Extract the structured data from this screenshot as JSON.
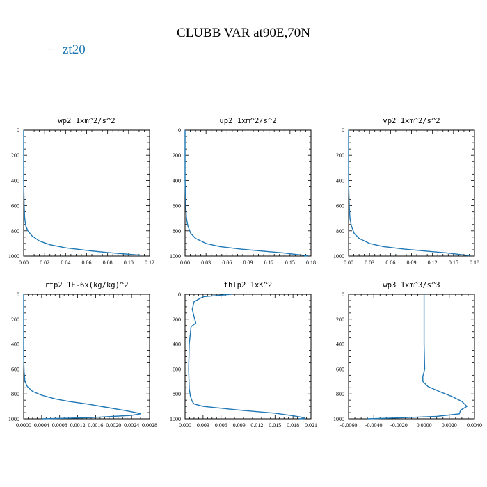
{
  "figure": {
    "title": "CLUBB VAR at90E,70N",
    "legend": {
      "label": "zt20",
      "color": "#1f77b4",
      "marker": "−",
      "placement": "top-left"
    }
  },
  "chart_data": [
    {
      "type": "line",
      "title": "wp2  1xm^2/s^2",
      "xlim": [
        0,
        0.12
      ],
      "ylim": [
        1000,
        0
      ],
      "xticks": [
        "0.00",
        "0.02",
        "0.04",
        "0.06",
        "0.08",
        "0.10",
        "0.12"
      ],
      "yticks": [
        "0",
        "200",
        "400",
        "600",
        "800",
        "1000"
      ],
      "x": [
        0.0,
        0.0,
        0.0005,
        0.001,
        0.002,
        0.004,
        0.008,
        0.015,
        0.025,
        0.04,
        0.06,
        0.08,
        0.1,
        0.11,
        0.11
      ],
      "y": [
        0,
        400,
        600,
        700,
        760,
        800,
        840,
        880,
        910,
        935,
        955,
        972,
        985,
        992,
        1000
      ]
    },
    {
      "type": "line",
      "title": "up2  1xm^2/s^2",
      "xlim": [
        0,
        0.18
      ],
      "ylim": [
        1000,
        0
      ],
      "xticks": [
        "0.00",
        "0.03",
        "0.06",
        "0.09",
        "0.12",
        "0.15",
        "0.18"
      ],
      "yticks": [
        "0",
        "200",
        "400",
        "600",
        "800",
        "1000"
      ],
      "x": [
        0.0,
        0.0,
        0.001,
        0.002,
        0.004,
        0.008,
        0.015,
        0.03,
        0.05,
        0.08,
        0.11,
        0.14,
        0.16,
        0.175,
        0.17
      ],
      "y": [
        0,
        400,
        600,
        700,
        760,
        820,
        860,
        900,
        925,
        945,
        960,
        975,
        988,
        997,
        1000
      ]
    },
    {
      "type": "line",
      "title": "vp2  1xm^2/s^2",
      "xlim": [
        0,
        0.18
      ],
      "ylim": [
        1000,
        0
      ],
      "xticks": [
        "0.00",
        "0.03",
        "0.06",
        "0.09",
        "0.12",
        "0.15",
        "0.18"
      ],
      "yticks": [
        "0",
        "200",
        "400",
        "600",
        "800",
        "1000"
      ],
      "x": [
        0.0,
        0.0,
        0.001,
        0.002,
        0.004,
        0.008,
        0.015,
        0.03,
        0.05,
        0.08,
        0.11,
        0.14,
        0.16,
        0.172,
        0.17
      ],
      "y": [
        0,
        400,
        600,
        700,
        760,
        820,
        860,
        900,
        925,
        945,
        960,
        975,
        988,
        997,
        1000
      ]
    },
    {
      "type": "line",
      "title": "rtp2  1E-6x(kg/kg)^2",
      "xlim": [
        0,
        0.0028
      ],
      "ylim": [
        1000,
        0
      ],
      "xticks": [
        "0.0000",
        "0.0004",
        "0.0008",
        "0.0012",
        "0.0016",
        "0.0020",
        "0.0024",
        "0.0028"
      ],
      "yticks": [
        "0",
        "200",
        "400",
        "600",
        "800",
        "1000"
      ],
      "x": [
        0.0,
        0.0,
        1e-05,
        3e-05,
        8e-05,
        0.0002,
        0.0004,
        0.0007,
        0.001,
        0.0014,
        0.0018,
        0.0022,
        0.0025,
        0.0026,
        0.0024,
        0.0015,
        0.0004
      ],
      "y": [
        0,
        500,
        620,
        700,
        740,
        780,
        810,
        840,
        860,
        880,
        905,
        930,
        950,
        960,
        972,
        990,
        1000
      ]
    },
    {
      "type": "line",
      "title": "thlp2  1xK^2",
      "xlim": [
        0,
        0.021
      ],
      "ylim": [
        1000,
        0
      ],
      "xticks": [
        "0.000",
        "0.003",
        "0.006",
        "0.009",
        "0.012",
        "0.015",
        "0.018",
        "0.021"
      ],
      "yticks": [
        "0",
        "200",
        "400",
        "600",
        "800",
        "1000"
      ],
      "x": [
        0.0077,
        0.003,
        0.0015,
        0.0012,
        0.0015,
        0.0018,
        0.001,
        0.0007,
        0.0006,
        0.0007,
        0.0009,
        0.0012,
        0.0015,
        0.003,
        0.009,
        0.015,
        0.018,
        0.0198,
        0.02,
        0.019
      ],
      "y": [
        0,
        20,
        60,
        120,
        180,
        230,
        260,
        400,
        600,
        760,
        820,
        860,
        880,
        900,
        930,
        955,
        975,
        990,
        997,
        1000
      ]
    },
    {
      "type": "line",
      "title": "wp3  1xm^3/s^3",
      "xlim": [
        -0.006,
        0.004
      ],
      "ylim": [
        1000,
        0
      ],
      "xticks": [
        "-0.0060",
        "-0.0040",
        "-0.0020",
        "0.0000",
        "0.0020",
        "0.0040"
      ],
      "yticks": [
        "0",
        "200",
        "400",
        "600",
        "800",
        "1000"
      ],
      "x": [
        0.0,
        0.0,
        0.0,
        5e-05,
        -0.0001,
        -0.0001,
        0.0003,
        0.0012,
        0.0022,
        0.003,
        0.0034,
        0.0029,
        0.0028,
        0.001,
        -0.002,
        -0.0045
      ],
      "y": [
        0,
        200,
        400,
        600,
        660,
        700,
        740,
        780,
        820,
        860,
        900,
        930,
        960,
        980,
        992,
        1000
      ]
    }
  ]
}
